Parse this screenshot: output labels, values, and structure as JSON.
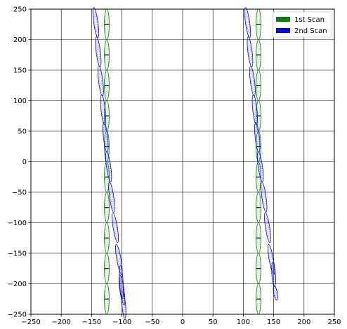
{
  "chart_data": {
    "type": "scatter",
    "title": "",
    "xlabel": "",
    "ylabel": "",
    "xlim": [
      -250,
      250
    ],
    "ylim": [
      -250,
      250
    ],
    "grid": true,
    "legend_position": "top-right",
    "x_ticks": [
      -250,
      -200,
      -150,
      -100,
      -50,
      0,
      50,
      100,
      150,
      200,
      250
    ],
    "y_ticks": [
      -250,
      -200,
      -150,
      -100,
      -50,
      0,
      50,
      100,
      150,
      200,
      250
    ],
    "series": [
      {
        "name": "1st Scan",
        "color": "#008000",
        "ellipses": [
          {
            "x": -125,
            "y": 225,
            "rx": 4,
            "ry": 25
          },
          {
            "x": -125,
            "y": 175,
            "rx": 4,
            "ry": 25
          },
          {
            "x": -125,
            "y": 125,
            "rx": 4,
            "ry": 25
          },
          {
            "x": -125,
            "y": 75,
            "rx": 4,
            "ry": 25
          },
          {
            "x": -125,
            "y": 25,
            "rx": 4,
            "ry": 25
          },
          {
            "x": -125,
            "y": -25,
            "rx": 4,
            "ry": 25
          },
          {
            "x": -125,
            "y": -75,
            "rx": 4,
            "ry": 25
          },
          {
            "x": -125,
            "y": -125,
            "rx": 4,
            "ry": 25
          },
          {
            "x": -125,
            "y": -175,
            "rx": 4,
            "ry": 25
          },
          {
            "x": -125,
            "y": -225,
            "rx": 4,
            "ry": 25
          },
          {
            "x": 125,
            "y": 225,
            "rx": 4,
            "ry": 25
          },
          {
            "x": 125,
            "y": 175,
            "rx": 4,
            "ry": 25
          },
          {
            "x": 125,
            "y": 125,
            "rx": 4,
            "ry": 25
          },
          {
            "x": 125,
            "y": 75,
            "rx": 4,
            "ry": 25
          },
          {
            "x": 125,
            "y": 25,
            "rx": 4,
            "ry": 25
          },
          {
            "x": 125,
            "y": -25,
            "rx": 4,
            "ry": 25
          },
          {
            "x": 125,
            "y": -75,
            "rx": 4,
            "ry": 25
          },
          {
            "x": 125,
            "y": -125,
            "rx": 4,
            "ry": 25
          },
          {
            "x": 125,
            "y": -175,
            "rx": 4,
            "ry": 25
          },
          {
            "x": 125,
            "y": -225,
            "rx": 4,
            "ry": 25
          }
        ]
      },
      {
        "name": "2nd Scan",
        "color": "#0000ff",
        "ellipses": [
          {
            "x": -143,
            "y": 228,
            "rx": 3.5,
            "ry": 25,
            "tilt": 8
          },
          {
            "x": -139,
            "y": 180,
            "rx": 3.5,
            "ry": 25,
            "tilt": 7
          },
          {
            "x": -135,
            "y": 132,
            "rx": 3.5,
            "ry": 25,
            "tilt": 7
          },
          {
            "x": -131,
            "y": 85,
            "rx": 3.5,
            "ry": 25,
            "tilt": 6
          },
          {
            "x": -127,
            "y": 40,
            "rx": 3.5,
            "ry": 25,
            "tilt": 6
          },
          {
            "x": -122,
            "y": -8,
            "rx": 3.5,
            "ry": 25,
            "tilt": 8
          },
          {
            "x": -117,
            "y": -58,
            "rx": 3.5,
            "ry": 25,
            "tilt": 8
          },
          {
            "x": -111,
            "y": -108,
            "rx": 3.5,
            "ry": 25,
            "tilt": 9
          },
          {
            "x": -105,
            "y": -160,
            "rx": 3.5,
            "ry": 25,
            "tilt": 10
          },
          {
            "x": -100,
            "y": -210,
            "rx": 3.5,
            "ry": 25,
            "tilt": 8
          },
          {
            "x": -97,
            "y": -235,
            "rx": 3,
            "ry": 22,
            "tilt": 5
          },
          {
            "x": -101,
            "y": -198,
            "rx": 3,
            "ry": 28,
            "tilt": 3
          },
          {
            "x": 107,
            "y": 228,
            "rx": 3.5,
            "ry": 25,
            "tilt": 8
          },
          {
            "x": 111,
            "y": 180,
            "rx": 3.5,
            "ry": 25,
            "tilt": 7
          },
          {
            "x": 115,
            "y": 132,
            "rx": 3.5,
            "ry": 25,
            "tilt": 7
          },
          {
            "x": 119,
            "y": 85,
            "rx": 3.5,
            "ry": 25,
            "tilt": 6
          },
          {
            "x": 123,
            "y": 40,
            "rx": 3.5,
            "ry": 25,
            "tilt": 6
          },
          {
            "x": 128,
            "y": -8,
            "rx": 3.5,
            "ry": 25,
            "tilt": 8
          },
          {
            "x": 134,
            "y": -58,
            "rx": 3.5,
            "ry": 25,
            "tilt": 8
          },
          {
            "x": 140,
            "y": -108,
            "rx": 3.5,
            "ry": 25,
            "tilt": 9
          },
          {
            "x": 146,
            "y": -160,
            "rx": 3.5,
            "ry": 25,
            "tilt": 10
          },
          {
            "x": 150,
            "y": -185,
            "rx": 3,
            "ry": 20,
            "tilt": 4
          },
          {
            "x": 153,
            "y": -215,
            "rx": 3,
            "ry": 12,
            "tilt": 10
          }
        ]
      }
    ]
  }
}
